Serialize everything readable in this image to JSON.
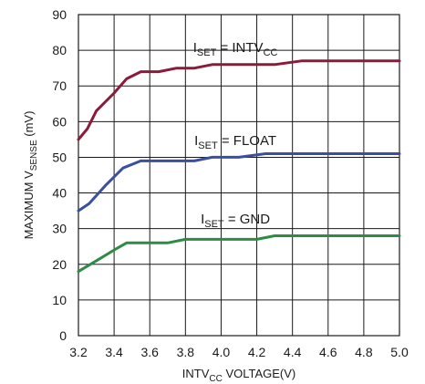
{
  "chart_data": {
    "type": "line",
    "title": "",
    "xlabel": {
      "main": "INTV",
      "sub": "CC",
      "tail": " VOLTAGE(V)"
    },
    "ylabel": {
      "main": "MAXIMUM V",
      "sub": "SENSE",
      "tail": " (mV)"
    },
    "xlim": [
      3.2,
      5.0
    ],
    "ylim": [
      0,
      90
    ],
    "x_ticks": [
      "3.2",
      "3.4",
      "3.6",
      "3.8",
      "4.0",
      "4.2",
      "4.4",
      "4.6",
      "4.8",
      "5.0"
    ],
    "y_ticks": [
      "0",
      "10",
      "20",
      "30",
      "40",
      "50",
      "60",
      "70",
      "80",
      "90"
    ],
    "grid": true,
    "series": [
      {
        "name": {
          "main": "I",
          "sub": "SET",
          "tail": " = INTV",
          "sub2": "CC"
        },
        "color": "#8c1a3a",
        "x": [
          3.2,
          3.25,
          3.3,
          3.4,
          3.47,
          3.55,
          3.65,
          3.75,
          3.85,
          3.95,
          4.1,
          4.3,
          4.45,
          4.7,
          5.0
        ],
        "y": [
          55,
          58,
          63,
          68,
          72,
          74,
          74,
          75,
          75,
          76,
          76,
          76,
          77,
          77,
          77
        ]
      },
      {
        "name": {
          "main": "I",
          "sub": "SET",
          "tail": " = FLOAT",
          "sub2": ""
        },
        "color": "#3a4f9e",
        "x": [
          3.2,
          3.26,
          3.35,
          3.45,
          3.55,
          3.7,
          3.85,
          3.95,
          4.1,
          4.25,
          4.5,
          5.0
        ],
        "y": [
          35,
          37,
          42,
          47,
          49,
          49,
          49,
          50,
          50,
          51,
          51,
          51
        ],
        "note": ""
      },
      {
        "name": {
          "main": "I",
          "sub": "SET",
          "tail": " = GND",
          "sub2": ""
        },
        "color": "#2e8b45",
        "x": [
          3.2,
          3.3,
          3.4,
          3.47,
          3.55,
          3.7,
          3.8,
          4.0,
          4.2,
          4.3,
          4.5,
          5.0
        ],
        "y": [
          18,
          21,
          24,
          26,
          26,
          26,
          27,
          27,
          27,
          28,
          28,
          28
        ]
      }
    ]
  }
}
